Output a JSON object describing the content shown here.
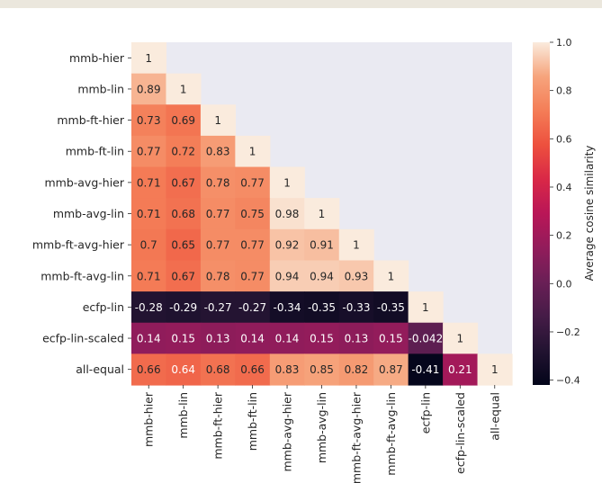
{
  "chart_data": {
    "type": "heatmap",
    "mask": "upper-triangle",
    "row_labels": [
      "mmb-hier",
      "mmb-lin",
      "mmb-ft-hier",
      "mmb-ft-lin",
      "mmb-avg-hier",
      "mmb-avg-lin",
      "mmb-ft-avg-hier",
      "mmb-ft-avg-lin",
      "ecfp-lin",
      "ecfp-lin-scaled",
      "all-equal"
    ],
    "col_labels": [
      "mmb-hier",
      "mmb-lin",
      "mmb-ft-hier",
      "mmb-ft-lin",
      "mmb-avg-hier",
      "mmb-avg-lin",
      "mmb-ft-avg-hier",
      "mmb-ft-avg-lin",
      "ecfp-lin",
      "ecfp-lin-scaled",
      "all-equal"
    ],
    "values": [
      [
        1
      ],
      [
        0.89,
        1
      ],
      [
        0.73,
        0.69,
        1
      ],
      [
        0.77,
        0.72,
        0.83,
        1
      ],
      [
        0.71,
        0.67,
        0.78,
        0.77,
        1
      ],
      [
        0.71,
        0.68,
        0.77,
        0.75,
        0.98,
        1
      ],
      [
        0.7,
        0.65,
        0.77,
        0.77,
        0.92,
        0.91,
        1
      ],
      [
        0.71,
        0.67,
        0.78,
        0.77,
        0.94,
        0.94,
        0.93,
        1
      ],
      [
        -0.28,
        -0.29,
        -0.27,
        -0.27,
        -0.34,
        -0.35,
        -0.33,
        -0.35,
        1
      ],
      [
        0.14,
        0.15,
        0.13,
        0.14,
        0.14,
        0.15,
        0.13,
        0.15,
        -0.042,
        1
      ],
      [
        0.66,
        0.64,
        0.68,
        0.66,
        0.83,
        0.85,
        0.82,
        0.87,
        -0.41,
        0.21,
        1
      ]
    ],
    "value_labels": [
      [
        "1"
      ],
      [
        "0.89",
        "1"
      ],
      [
        "0.73",
        "0.69",
        "1"
      ],
      [
        "0.77",
        "0.72",
        "0.83",
        "1"
      ],
      [
        "0.71",
        "0.67",
        "0.78",
        "0.77",
        "1"
      ],
      [
        "0.71",
        "0.68",
        "0.77",
        "0.75",
        "0.98",
        "1"
      ],
      [
        "0.7",
        "0.65",
        "0.77",
        "0.77",
        "0.92",
        "0.91",
        "1"
      ],
      [
        "0.71",
        "0.67",
        "0.78",
        "0.77",
        "0.94",
        "0.94",
        "0.93",
        "1"
      ],
      [
        "-0.28",
        "-0.29",
        "-0.27",
        "-0.27",
        "-0.34",
        "-0.35",
        "-0.33",
        "-0.35",
        "1"
      ],
      [
        "0.14",
        "0.15",
        "0.13",
        "0.14",
        "0.14",
        "0.15",
        "0.13",
        "0.15",
        "-0.042",
        "1"
      ],
      [
        "0.66",
        "0.64",
        "0.68",
        "0.66",
        "0.83",
        "0.85",
        "0.82",
        "0.87",
        "-0.41",
        "0.21",
        "1"
      ]
    ],
    "colorbar": {
      "label": "Average cosine similarity",
      "range": [
        -0.42,
        1.0
      ],
      "ticks": [
        1.0,
        0.8,
        0.6,
        0.4,
        0.2,
        0.0,
        -0.2,
        -0.4
      ],
      "tick_labels": [
        "1.0",
        "0.8",
        "0.6",
        "0.4",
        "0.2",
        "0.0",
        "−0.2",
        "−0.4"
      ],
      "colormap": "rocket",
      "colormap_stops": [
        [
          0.0,
          "#03051a"
        ],
        [
          0.1,
          "#221331"
        ],
        [
          0.2,
          "#451c47"
        ],
        [
          0.3,
          "#6a1f56"
        ],
        [
          0.4,
          "#921c5b"
        ],
        [
          0.5,
          "#b91657"
        ],
        [
          0.6,
          "#d92847"
        ],
        [
          0.7,
          "#ed503e"
        ],
        [
          0.8,
          "#f47d57"
        ],
        [
          0.9,
          "#f6a47c"
        ],
        [
          1.0,
          "#faebdd"
        ]
      ]
    },
    "mask_color": "#eaeaf2"
  }
}
